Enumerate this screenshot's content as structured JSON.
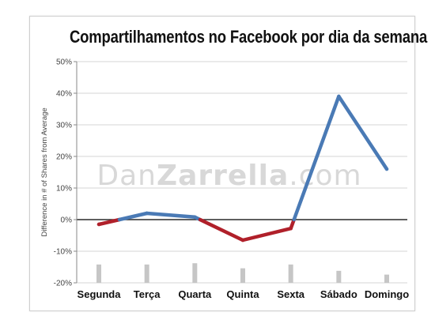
{
  "chart_data": {
    "type": "line",
    "title": "Compartilhamentos no Facebook por dia da semana",
    "ylabel": "Difference in # of Shares from Average",
    "xlabel": "",
    "categories": [
      "Segunda",
      "Terça",
      "Quarta",
      "Quinta",
      "Sexta",
      "Sábado",
      "Domingo"
    ],
    "ylim": [
      -20,
      50
    ],
    "yticks": [
      "50%",
      "40%",
      "30%",
      "20%",
      "10%",
      "0%",
      "-10%",
      "-20%"
    ],
    "ytick_values": [
      50,
      40,
      30,
      20,
      10,
      0,
      -10,
      -20
    ],
    "grid": true,
    "series": [
      {
        "values": [
          -1.5,
          2,
          0.8,
          -6.5,
          -2.8,
          39,
          16
        ],
        "positive_color": "#4a7ab5",
        "negative_color": "#b0202a"
      }
    ],
    "secondary_bars": [
      5.8,
      5.8,
      6.2,
      4.6,
      5.8,
      3.8,
      2.6
    ],
    "secondary_bar_color": "#c6c6c6",
    "watermark": {
      "prefix": "Dan",
      "bold": "Zarrella",
      "suffix": ".com"
    }
  }
}
